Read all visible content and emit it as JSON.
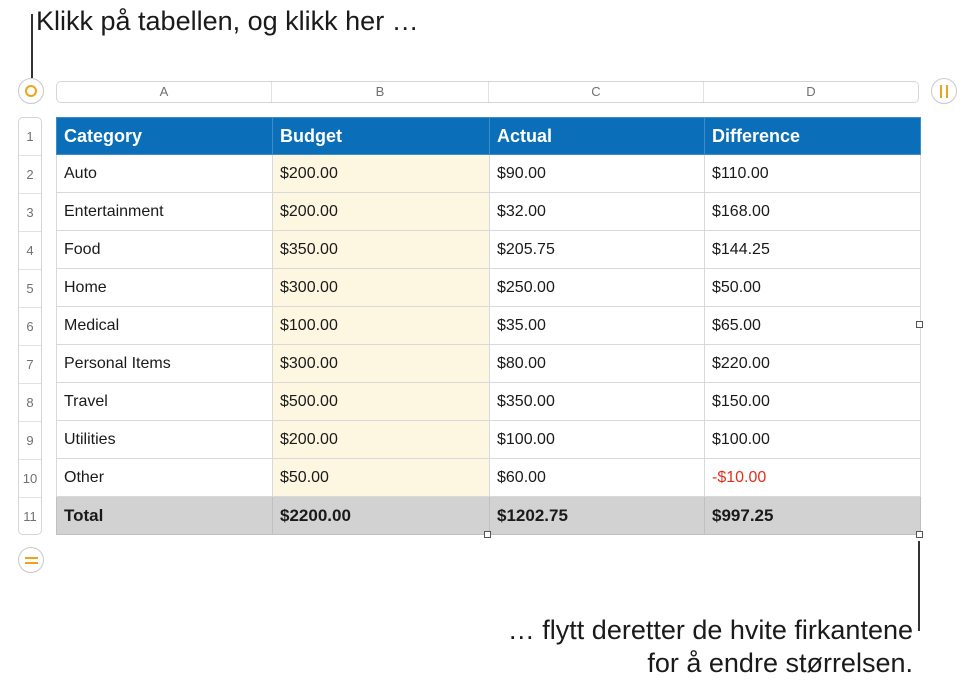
{
  "callouts": {
    "top": "Klikk på tabellen, og klikk her …",
    "bottom_line1": "… flytt deretter de hvite firkantene",
    "bottom_line2": "for å endre størrelsen."
  },
  "column_letters": [
    "A",
    "B",
    "C",
    "D"
  ],
  "row_numbers": [
    "1",
    "2",
    "3",
    "4",
    "5",
    "6",
    "7",
    "8",
    "9",
    "10",
    "11"
  ],
  "table": {
    "header": [
      "Category",
      "Budget",
      "Actual",
      "Difference"
    ],
    "rows": [
      [
        "Auto",
        "$200.00",
        "$90.00",
        "$110.00"
      ],
      [
        "Entertainment",
        "$200.00",
        "$32.00",
        "$168.00"
      ],
      [
        "Food",
        "$350.00",
        "$205.75",
        "$144.25"
      ],
      [
        "Home",
        "$300.00",
        "$250.00",
        "$50.00"
      ],
      [
        "Medical",
        "$100.00",
        "$35.00",
        "$65.00"
      ],
      [
        "Personal Items",
        "$300.00",
        "$80.00",
        "$220.00"
      ],
      [
        "Travel",
        "$500.00",
        "$350.00",
        "$150.00"
      ],
      [
        "Utilities",
        "$200.00",
        "$100.00",
        "$100.00"
      ],
      [
        "Other",
        "$50.00",
        "$60.00",
        "-$10.00"
      ]
    ],
    "total": [
      "Total",
      "$2200.00",
      "$1202.75",
      "$997.25"
    ]
  },
  "colors": {
    "header_bg": "#0a6fb8",
    "budget_column_bg": "#fdf6e1",
    "total_row_bg": "#d2d2d2",
    "negative_value": "#e0301e",
    "handle_accent": "#f0a21b"
  },
  "icons": {
    "table_select_handle": "circle-ring-icon",
    "add_column_handle": "vertical-double-bar-icon",
    "add_row_handle": "horizontal-double-bar-icon"
  }
}
